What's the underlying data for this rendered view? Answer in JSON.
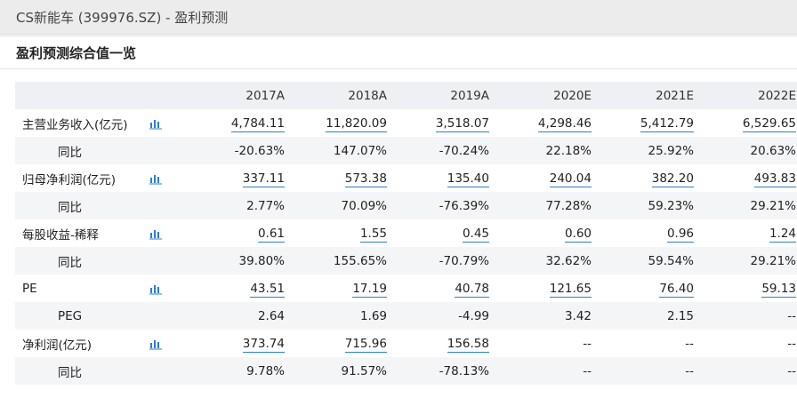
{
  "window": {
    "title": "CS新能车 (399976.SZ) - 盈利预测"
  },
  "panel": {
    "title": "盈利预测综合值一览"
  },
  "colors": {
    "accent": "#2a7fd0",
    "header_bg": "#eef0f3",
    "stripe_bg": "#f4f5f7"
  },
  "table": {
    "headers": [
      "2017A",
      "2018A",
      "2019A",
      "2020E",
      "2021E",
      "2022E"
    ],
    "rows": [
      {
        "label": "主营业务收入(亿元)",
        "icon": "bar-chart-icon",
        "values": [
          "4,784.11",
          "11,820.09",
          "3,518.07",
          "4,298.46",
          "5,412.79",
          "6,529.65"
        ]
      },
      {
        "label": "同比",
        "values": [
          "-20.63%",
          "147.07%",
          "-70.24%",
          "22.18%",
          "25.92%",
          "20.63%"
        ]
      },
      {
        "label": "归母净利润(亿元)",
        "icon": "bar-chart-icon",
        "values": [
          "337.11",
          "573.38",
          "135.40",
          "240.04",
          "382.20",
          "493.83"
        ]
      },
      {
        "label": "同比",
        "values": [
          "2.77%",
          "70.09%",
          "-76.39%",
          "77.28%",
          "59.23%",
          "29.21%"
        ]
      },
      {
        "label": "每股收益-稀释",
        "icon": "bar-chart-icon",
        "values": [
          "0.61",
          "1.55",
          "0.45",
          "0.60",
          "0.96",
          "1.24"
        ]
      },
      {
        "label": "同比",
        "values": [
          "39.80%",
          "155.65%",
          "-70.79%",
          "32.62%",
          "59.54%",
          "29.21%"
        ]
      },
      {
        "label": "PE",
        "icon": "bar-chart-icon",
        "values": [
          "43.51",
          "17.19",
          "40.78",
          "121.65",
          "76.40",
          "59.13"
        ]
      },
      {
        "label": "PEG",
        "values": [
          "2.64",
          "1.69",
          "-4.99",
          "3.42",
          "2.15",
          "--"
        ]
      },
      {
        "label": "净利润(亿元)",
        "icon": "bar-chart-icon",
        "values": [
          "373.74",
          "715.96",
          "156.58",
          "--",
          "--",
          "--"
        ]
      },
      {
        "label": "同比",
        "values": [
          "9.78%",
          "91.57%",
          "-78.13%",
          "--",
          "--",
          "--"
        ]
      }
    ]
  }
}
